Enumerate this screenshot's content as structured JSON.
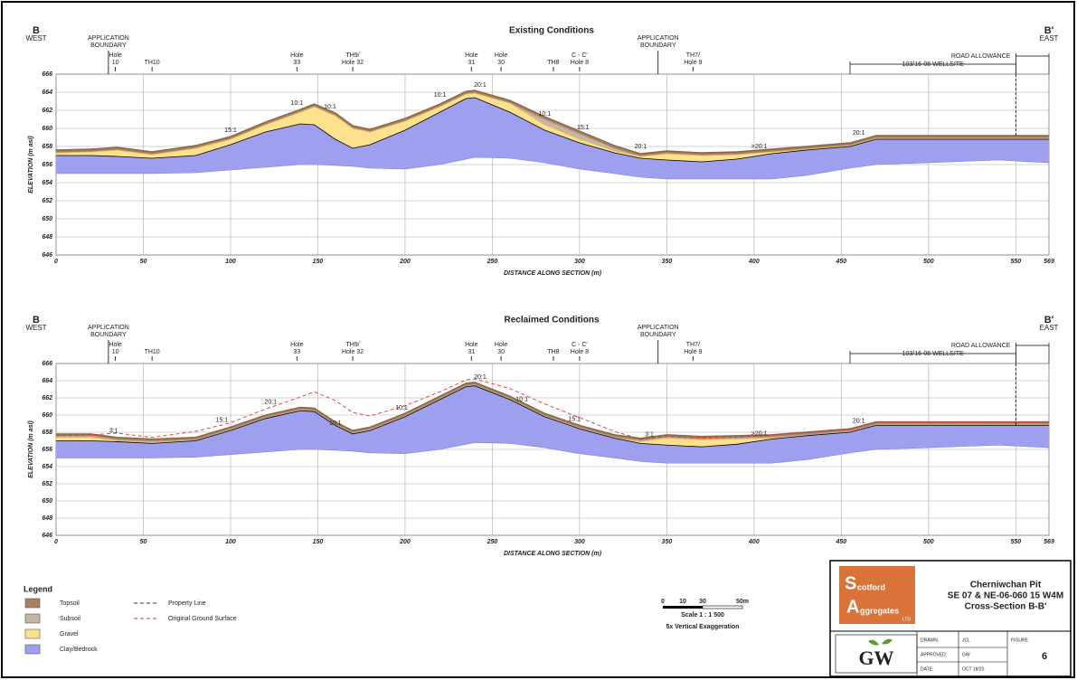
{
  "page": {
    "west": [
      "B",
      "WEST"
    ],
    "east": [
      "B'",
      "EAST"
    ]
  },
  "chart_data": [
    {
      "type": "cross-section",
      "title": "Existing Conditions",
      "xlabel": "DISTANCE ALONG SECTION (m)",
      "ylabel": "ELEVATION (m asl)",
      "xlim": [
        0,
        569
      ],
      "ylim": [
        646,
        666
      ],
      "xticks": [
        0,
        50,
        100,
        150,
        200,
        250,
        300,
        350,
        400,
        450,
        500,
        550,
        569
      ],
      "yticks": [
        646,
        648,
        650,
        652,
        654,
        656,
        658,
        660,
        662,
        664,
        666
      ],
      "grid": true,
      "x": [
        0,
        20,
        35,
        55,
        80,
        100,
        120,
        140,
        148,
        160,
        170,
        180,
        200,
        220,
        235,
        240,
        260,
        280,
        300,
        320,
        335,
        350,
        370,
        390,
        410,
        430,
        455,
        470,
        500,
        540,
        569
      ],
      "series": [
        {
          "name": "Topsoil",
          "color": "#a88060",
          "edge": "#8a6446",
          "values": [
            657.6,
            657.7,
            657.9,
            657.4,
            658.1,
            659.1,
            660.7,
            662.1,
            662.7,
            661.7,
            660.3,
            659.9,
            661.1,
            662.7,
            664.1,
            664.2,
            663.1,
            661.3,
            659.7,
            658.1,
            657.2,
            657.5,
            657.3,
            657.4,
            657.7,
            658.0,
            658.4,
            659.2,
            659.2,
            659.2,
            659.2
          ]
        },
        {
          "name": "Subsoil",
          "color": "#c6b5a2",
          "edge": "#b09a84",
          "values": [
            657.3,
            657.4,
            657.6,
            657.1,
            657.8,
            658.8,
            660.4,
            661.8,
            662.4,
            661.4,
            660.0,
            659.6,
            660.8,
            662.4,
            663.8,
            663.9,
            662.8,
            661.0,
            659.4,
            657.8,
            656.9,
            657.2,
            657.0,
            657.1,
            657.4,
            657.7,
            658.1,
            658.9,
            658.9,
            658.9,
            658.9
          ]
        },
        {
          "name": "Gravel",
          "color": "#fde18c",
          "edge": "#e6c060",
          "values": [
            657.3,
            657.4,
            657.6,
            657.1,
            657.8,
            658.8,
            660.4,
            661.8,
            662.4,
            661.4,
            660.0,
            659.6,
            660.8,
            662.4,
            663.8,
            663.9,
            662.8,
            660.4,
            658.8,
            657.5,
            656.9,
            657.2,
            657.0,
            657.1,
            657.4,
            657.7,
            658.1,
            658.9,
            658.9,
            658.9,
            658.9
          ]
        },
        {
          "name": "Clay/Bedrock",
          "color": "#9f9ff0",
          "edge": "#000000",
          "values": [
            657.0,
            657.0,
            656.9,
            656.7,
            657.0,
            658.2,
            659.6,
            660.5,
            660.4,
            658.8,
            657.8,
            658.2,
            659.8,
            661.8,
            663.3,
            663.4,
            661.8,
            659.8,
            658.4,
            657.3,
            656.7,
            656.5,
            656.3,
            656.6,
            657.2,
            657.6,
            658.0,
            658.8,
            658.8,
            658.8,
            658.8
          ],
          "base": [
            655.0,
            655.0,
            655.0,
            655.0,
            655.1,
            655.4,
            655.7,
            656.0,
            656.0,
            655.9,
            655.8,
            655.6,
            655.5,
            656.0,
            656.6,
            656.8,
            656.7,
            656.2,
            655.5,
            655.0,
            654.6,
            654.4,
            654.4,
            654.4,
            654.4,
            654.8,
            655.6,
            656.0,
            656.2,
            656.5,
            656.2
          ]
        }
      ],
      "annotations": [
        {
          "text": "15:1",
          "x": 100,
          "y": 659.4
        },
        {
          "text": "10:1",
          "x": 138,
          "y": 662.4
        },
        {
          "text": "10:1",
          "x": 157,
          "y": 662.0
        },
        {
          "text": "10:1",
          "x": 220,
          "y": 663.3
        },
        {
          "text": "20:1",
          "x": 243,
          "y": 664.4
        },
        {
          "text": "10:1",
          "x": 280,
          "y": 661.2
        },
        {
          "text": "15:1",
          "x": 302,
          "y": 659.7
        },
        {
          "text": "20:1",
          "x": 335,
          "y": 657.6
        },
        {
          "text": ">20:1",
          "x": 403,
          "y": 657.6
        },
        {
          "text": "20:1",
          "x": 460,
          "y": 659.1
        }
      ],
      "markers": [
        {
          "lines": [
            "APPLICATION",
            "BOUNDARY"
          ],
          "x": 30,
          "kind": "boundary"
        },
        {
          "lines": [
            "Hole",
            "10"
          ],
          "x": 34
        },
        {
          "lines": [
            "TH10"
          ],
          "x": 55
        },
        {
          "lines": [
            "Hole",
            "33"
          ],
          "x": 138
        },
        {
          "lines": [
            "TH9/",
            "Hole 32"
          ],
          "x": 170
        },
        {
          "lines": [
            "Hole",
            "31"
          ],
          "x": 238
        },
        {
          "lines": [
            "Hole",
            "30"
          ],
          "x": 255
        },
        {
          "lines": [
            "TH8"
          ],
          "x": 285
        },
        {
          "lines": [
            "C - C'",
            "Hole 8"
          ],
          "x": 300
        },
        {
          "lines": [
            "APPLICATION",
            "BOUNDARY"
          ],
          "x": 345,
          "kind": "boundary"
        },
        {
          "lines": [
            "TH7/",
            "Hole 9"
          ],
          "x": 365
        }
      ],
      "extents": [
        {
          "label": "ROAD ALLOWANCE",
          "from": 550,
          "to": 569
        },
        {
          "label": "103/16-06 WELLSITE",
          "from": 455,
          "to": 550
        }
      ]
    },
    {
      "type": "cross-section",
      "title": "Reclaimed Conditions",
      "xlabel": "DISTANCE ALONG SECTION (m)",
      "ylabel": "ELEVATION (m asl)",
      "xlim": [
        0,
        569
      ],
      "ylim": [
        646,
        666
      ],
      "xticks": [
        0,
        50,
        100,
        150,
        200,
        250,
        300,
        350,
        400,
        450,
        500,
        550,
        569
      ],
      "yticks": [
        646,
        648,
        650,
        652,
        654,
        656,
        658,
        660,
        662,
        664,
        666
      ],
      "grid": true,
      "x": [
        0,
        20,
        35,
        55,
        80,
        100,
        120,
        140,
        148,
        160,
        170,
        180,
        200,
        220,
        235,
        240,
        260,
        280,
        300,
        320,
        335,
        350,
        370,
        390,
        410,
        430,
        455,
        470,
        500,
        540,
        569
      ],
      "series": [
        {
          "name": "Topsoil",
          "color": "#a88060",
          "edge": "#8a6446",
          "values": [
            657.8,
            657.8,
            657.4,
            657.2,
            657.4,
            658.6,
            660.0,
            660.9,
            660.8,
            659.2,
            658.2,
            658.6,
            660.2,
            662.2,
            663.7,
            663.8,
            662.2,
            660.2,
            658.8,
            657.7,
            657.3,
            657.7,
            657.5,
            657.6,
            657.7,
            658.0,
            658.4,
            659.2,
            659.2,
            659.2,
            659.2
          ]
        },
        {
          "name": "Subsoil",
          "color": "#c6b5a2",
          "edge": "#b09a84",
          "values": [
            657.55,
            657.55,
            657.15,
            656.95,
            657.15,
            658.35,
            659.75,
            660.65,
            660.55,
            658.95,
            657.95,
            658.35,
            659.95,
            661.95,
            663.45,
            663.55,
            661.95,
            659.95,
            658.55,
            657.45,
            657.05,
            657.45,
            657.25,
            657.35,
            657.45,
            657.75,
            658.15,
            658.95,
            658.95,
            658.95,
            658.95
          ]
        },
        {
          "name": "Gravel",
          "color": "#fde18c",
          "edge": "#e6c060",
          "values": [
            657.4,
            657.4,
            657.0,
            656.8,
            657.0,
            658.2,
            659.6,
            660.5,
            660.4,
            658.8,
            657.8,
            658.2,
            659.8,
            661.8,
            663.3,
            663.4,
            661.8,
            659.8,
            658.4,
            657.3,
            656.9,
            657.3,
            657.1,
            657.2,
            657.3,
            657.6,
            658.0,
            658.8,
            658.8,
            658.8,
            658.8
          ]
        },
        {
          "name": "Clay/Bedrock",
          "color": "#9f9ff0",
          "edge": "#000000",
          "values": [
            657.0,
            657.0,
            656.9,
            656.7,
            657.0,
            658.2,
            659.6,
            660.5,
            660.4,
            658.8,
            657.8,
            658.2,
            659.8,
            661.8,
            663.3,
            663.4,
            661.8,
            659.8,
            658.4,
            657.3,
            656.7,
            656.5,
            656.3,
            656.6,
            657.2,
            657.6,
            658.0,
            658.8,
            658.8,
            658.8,
            658.8
          ],
          "base": [
            655.0,
            655.0,
            655.0,
            655.0,
            655.1,
            655.4,
            655.7,
            656.0,
            656.0,
            655.9,
            655.8,
            655.6,
            655.5,
            656.0,
            656.6,
            656.8,
            656.7,
            656.2,
            655.5,
            655.0,
            654.6,
            654.4,
            654.4,
            654.4,
            654.4,
            654.8,
            655.6,
            656.0,
            656.2,
            656.5,
            656.2
          ]
        },
        {
          "name": "Original Ground Surface",
          "color": "#e83030",
          "style": "dashed",
          "values": [
            657.6,
            657.7,
            657.9,
            657.4,
            658.1,
            659.1,
            660.7,
            662.1,
            662.7,
            661.7,
            660.3,
            659.9,
            661.1,
            662.7,
            664.1,
            664.2,
            663.1,
            661.3,
            659.7,
            658.1,
            657.2,
            657.5,
            657.3,
            657.4,
            657.7,
            658.0,
            658.4,
            659.2,
            659.2,
            659.2,
            659.2
          ]
        }
      ],
      "annotations": [
        {
          "text": "3:1",
          "x": 33,
          "y": 657.7
        },
        {
          "text": "15:1",
          "x": 95,
          "y": 659.0
        },
        {
          "text": "20:1",
          "x": 123,
          "y": 661.1
        },
        {
          "text": "10:1",
          "x": 160,
          "y": 658.6
        },
        {
          "text": "10:1",
          "x": 198,
          "y": 660.4
        },
        {
          "text": "20:1",
          "x": 243,
          "y": 664.0
        },
        {
          "text": "10:1",
          "x": 267,
          "y": 661.4
        },
        {
          "text": "15:1",
          "x": 297,
          "y": 659.1
        },
        {
          "text": "3:1",
          "x": 340,
          "y": 657.3
        },
        {
          "text": ">20:1",
          "x": 403,
          "y": 657.4
        },
        {
          "text": "20:1",
          "x": 460,
          "y": 658.9
        }
      ],
      "markers": [
        {
          "lines": [
            "APPLICATION",
            "BOUNDARY"
          ],
          "x": 30,
          "kind": "boundary"
        },
        {
          "lines": [
            "Hole",
            "10"
          ],
          "x": 34
        },
        {
          "lines": [
            "TH10"
          ],
          "x": 55
        },
        {
          "lines": [
            "Hole",
            "33"
          ],
          "x": 138
        },
        {
          "lines": [
            "TH9/",
            "Hole 32"
          ],
          "x": 170
        },
        {
          "lines": [
            "Hole",
            "31"
          ],
          "x": 238
        },
        {
          "lines": [
            "Hole",
            "30"
          ],
          "x": 255
        },
        {
          "lines": [
            "TH8"
          ],
          "x": 285
        },
        {
          "lines": [
            "C - C'",
            "Hole 8"
          ],
          "x": 300
        },
        {
          "lines": [
            "APPLICATION",
            "BOUNDARY"
          ],
          "x": 345,
          "kind": "boundary"
        },
        {
          "lines": [
            "TH7/",
            "Hole 9"
          ],
          "x": 365
        }
      ],
      "extents": [
        {
          "label": "ROAD ALLOWANCE",
          "from": 550,
          "to": 569
        },
        {
          "label": "103/16-06 WELLSITE",
          "from": 455,
          "to": 550
        }
      ]
    }
  ],
  "legend": {
    "title": "Legend",
    "fills": [
      {
        "name": "Topsoil",
        "color": "#a88060"
      },
      {
        "name": "Subsoil",
        "color": "#c6b5a2"
      },
      {
        "name": "Gravel",
        "color": "#fde18c"
      },
      {
        "name": "Clay/Bedrock",
        "color": "#9f9ff0"
      }
    ],
    "lines": [
      {
        "name": "Property Line",
        "color": "#333333"
      },
      {
        "name": "Original Ground Surface",
        "color": "#e83030"
      }
    ]
  },
  "scale_bar": {
    "labels": [
      "0",
      "10",
      "30",
      "50m"
    ],
    "scale": "Scale 1 : 1 500",
    "note": "5x Vertical Exaggeration"
  },
  "title_block": {
    "logo": [
      "S",
      "cotford",
      "A",
      "ggregates",
      "LTD"
    ],
    "title": [
      "Cherniwchan Pit",
      "SE 07 & NE-06-060 15 W4M",
      "Cross-Section B-B'"
    ],
    "logo2": "GW",
    "fields": [
      [
        "DRAWN:",
        "JCL"
      ],
      [
        "APPROVED:",
        "GW"
      ],
      [
        "DATE:",
        "OCT 18/20"
      ]
    ],
    "figure_label": "FIGURE:",
    "figure": "6"
  }
}
